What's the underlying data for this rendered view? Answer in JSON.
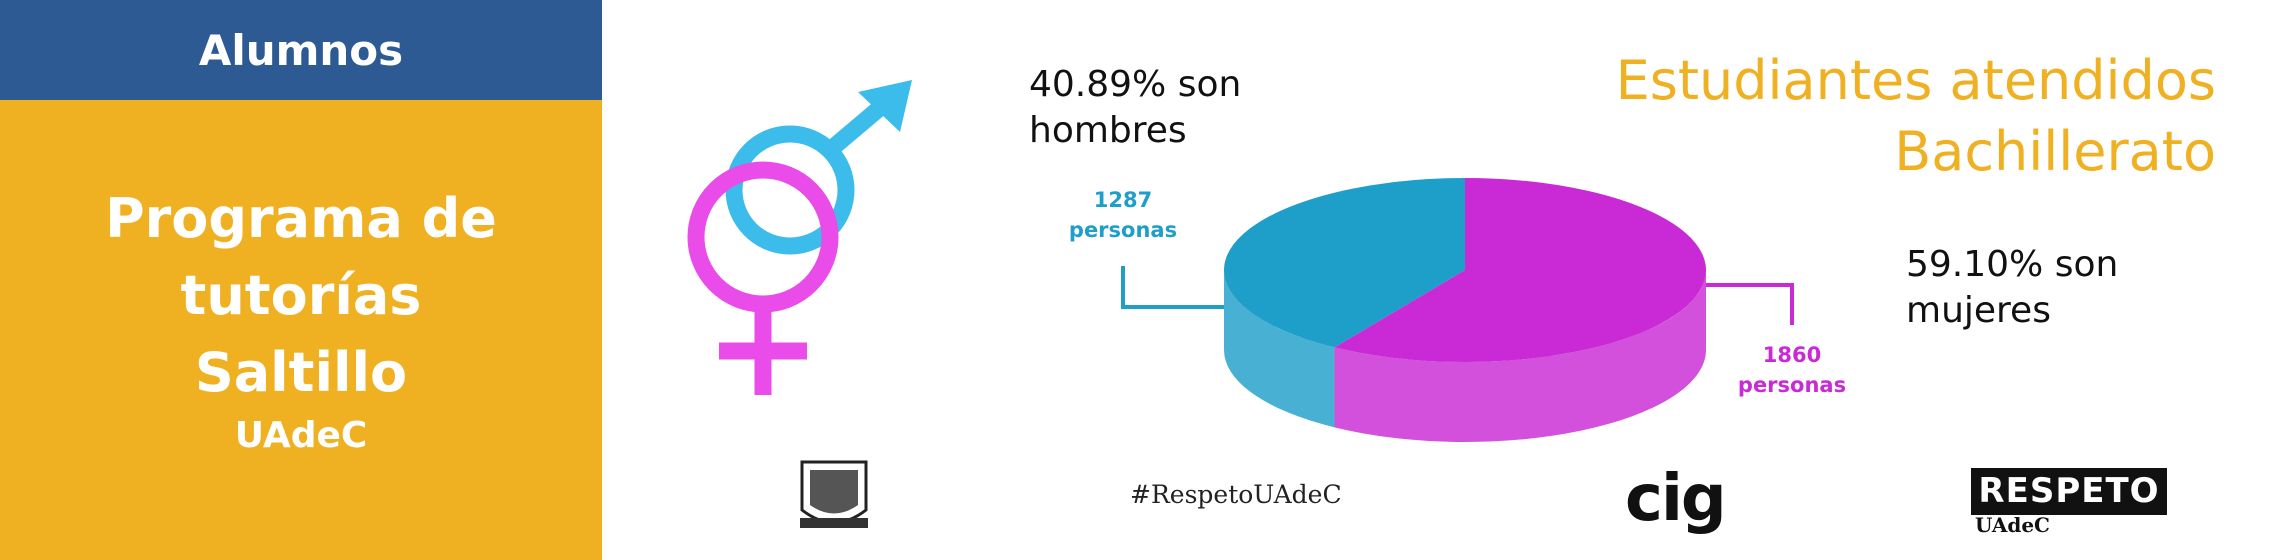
{
  "sidebar": {
    "header": "Alumnos",
    "title": "Programa de tutorías Saltillo",
    "subtitle": "UAdeC"
  },
  "chart_data": {
    "type": "pie",
    "title": "Estudiantes atendidos Bachillerato",
    "values": [
      1287,
      1860
    ],
    "value_labels": [
      "1287 personas",
      "1860 personas"
    ],
    "colors": [
      "#1e9fc9",
      "#c92ad6"
    ],
    "annotations": [
      "40.89% son hombres",
      "59.10% son mujeres"
    ]
  },
  "footer": {
    "hashtag": "#RespetoUAdeC",
    "cig": "cig",
    "respeto": "RESPETO",
    "respeto_sub": "UAdeC"
  }
}
